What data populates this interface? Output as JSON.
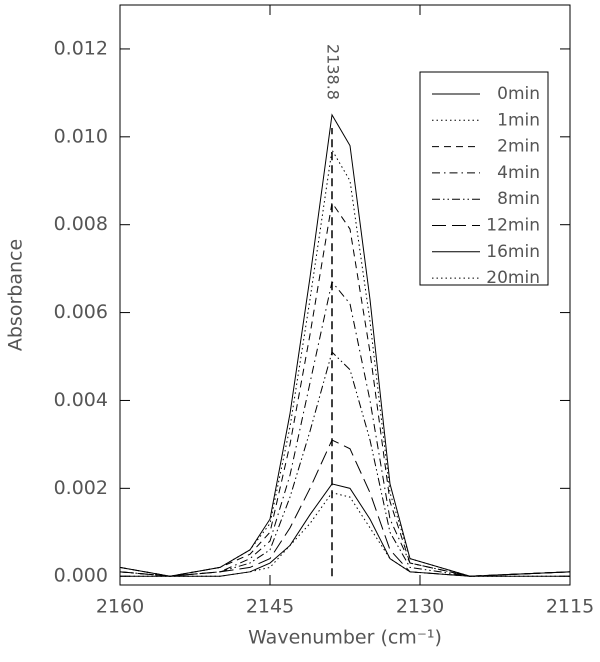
{
  "chart_data": {
    "type": "line",
    "xlabel": "Wavenumber (cm⁻¹)",
    "ylabel": "Absorbance",
    "x": [
      2160,
      2155,
      2150,
      2147,
      2145,
      2143,
      2141,
      2138.8,
      2137,
      2135,
      2133,
      2131,
      2125,
      2115
    ],
    "series": [
      {
        "name": "0min",
        "color": "#000000",
        "linestyle": "solid",
        "values": [
          0.0002,
          0,
          0.0002,
          0.0006,
          0.0013,
          0.0037,
          0.0068,
          0.0105,
          0.0098,
          0.0063,
          0.0021,
          0.0004,
          0,
          0.0001
        ]
      },
      {
        "name": "1min",
        "color": "#000000",
        "linestyle": "dotted",
        "values": [
          0.0002,
          0,
          0.0002,
          0.0006,
          0.0012,
          0.0034,
          0.0063,
          0.0097,
          0.009,
          0.0058,
          0.0019,
          0.0004,
          0,
          0.0001
        ]
      },
      {
        "name": "2min",
        "color": "#000000",
        "linestyle": "dashed",
        "values": [
          0.0002,
          0,
          0.0002,
          0.0005,
          0.001,
          0.003,
          0.0055,
          0.0085,
          0.0079,
          0.0051,
          0.0017,
          0.0003,
          0,
          0.0001
        ]
      },
      {
        "name": "4min",
        "color": "#000000",
        "linestyle": "dashdot",
        "values": [
          0.0001,
          0,
          0.0001,
          0.0004,
          0.0008,
          0.0023,
          0.0044,
          0.0067,
          0.0062,
          0.004,
          0.0013,
          0.0003,
          0,
          0.0001
        ]
      },
      {
        "name": "8min",
        "color": "#000000",
        "linestyle": "dashdotdot",
        "values": [
          0.0001,
          0,
          0.0001,
          0.0003,
          0.0006,
          0.0018,
          0.0033,
          0.0051,
          0.0047,
          0.0031,
          0.001,
          0.0002,
          0,
          0.0001
        ]
      },
      {
        "name": "12min",
        "color": "#000000",
        "linestyle": "longdash",
        "values": [
          0.0001,
          0,
          0.0001,
          0.0002,
          0.0004,
          0.0011,
          0.002,
          0.0031,
          0.0029,
          0.0019,
          0.0006,
          0.0001,
          0,
          0.0001
        ]
      },
      {
        "name": "16min",
        "color": "#000000",
        "linestyle": "solid",
        "values": [
          0,
          0,
          0,
          0.0001,
          0.0003,
          0.0007,
          0.0014,
          0.0021,
          0.002,
          0.0013,
          0.0004,
          0.0001,
          0,
          0
        ]
      },
      {
        "name": "20min",
        "color": "#000000",
        "linestyle": "dotted",
        "values": [
          0,
          0,
          0,
          0.0001,
          0.0002,
          0.0007,
          0.0012,
          0.0019,
          0.0018,
          0.0011,
          0.0004,
          0.0001,
          0,
          0
        ]
      }
    ],
    "annotation": {
      "text": "2138.8",
      "x": 2138.8,
      "y_end": 0.0102
    },
    "xlim": [
      2160,
      2115
    ],
    "xticks": [
      2160,
      2145,
      2130,
      2115
    ],
    "ylim": [
      -0.0002,
      0.013
    ],
    "yticks": [
      {
        "value": 0,
        "label": "0.000"
      },
      {
        "value": 0.002,
        "label": "0.002"
      },
      {
        "value": 0.004,
        "label": "0.004"
      },
      {
        "value": 0.006,
        "label": "0.006"
      },
      {
        "value": 0.008,
        "label": "0.008"
      },
      {
        "value": 0.01,
        "label": "0.010"
      },
      {
        "value": 0.012,
        "label": "0.012"
      }
    ],
    "legend": "top-right"
  }
}
